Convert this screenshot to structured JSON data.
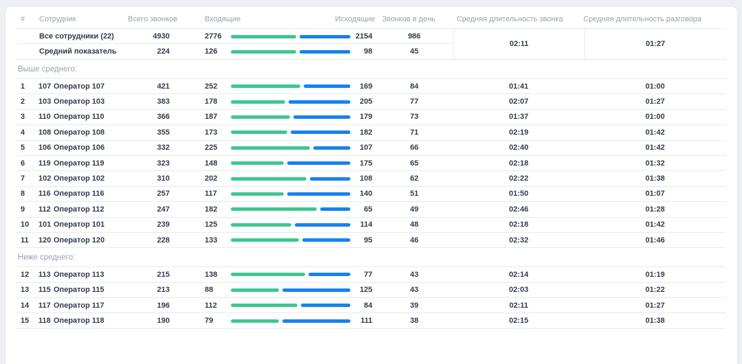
{
  "colors": {
    "incoming_bar": "#3ec78f",
    "outgoing_bar": "#1682f0"
  },
  "table": {
    "columns": {
      "rank": "#",
      "employee": "Сотрудник",
      "total": "Всего звонков",
      "incoming": "Входящие",
      "outgoing": "Исходящие",
      "per_day": "Звонков в день",
      "avg_call": "Средняя длительность звонка",
      "avg_talk": "Средняя длительность разговора"
    },
    "summary": [
      {
        "label": "Все сотрудники (22)",
        "total": 4930,
        "incoming": 2776,
        "outgoing": 2154,
        "per_day": 986
      },
      {
        "label": "Средний показатель",
        "total": 224,
        "incoming": 126,
        "outgoing": 98,
        "per_day": 45
      }
    ],
    "summary_avg_call": "02:11",
    "summary_avg_talk": "01:27",
    "sections": [
      {
        "label": "Выше среднего:",
        "rows": [
          {
            "rank": 1,
            "id": "107",
            "name": "Оператор 107",
            "total": 421,
            "incoming": 252,
            "outgoing": 169,
            "per_day": 84,
            "avg_call": "01:41",
            "avg_talk": "01:00"
          },
          {
            "rank": 2,
            "id": "103",
            "name": "Оператор 103",
            "total": 383,
            "incoming": 178,
            "outgoing": 205,
            "per_day": 77,
            "avg_call": "02:07",
            "avg_talk": "01:27"
          },
          {
            "rank": 3,
            "id": "110",
            "name": "Оператор 110",
            "total": 366,
            "incoming": 187,
            "outgoing": 179,
            "per_day": 73,
            "avg_call": "01:37",
            "avg_talk": "01:00"
          },
          {
            "rank": 4,
            "id": "108",
            "name": "Оператор 108",
            "total": 355,
            "incoming": 173,
            "outgoing": 182,
            "per_day": 71,
            "avg_call": "02:19",
            "avg_talk": "01:42"
          },
          {
            "rank": 5,
            "id": "106",
            "name": "Оператор 106",
            "total": 332,
            "incoming": 225,
            "outgoing": 107,
            "per_day": 66,
            "avg_call": "02:40",
            "avg_talk": "01:42"
          },
          {
            "rank": 6,
            "id": "119",
            "name": "Оператор 119",
            "total": 323,
            "incoming": 148,
            "outgoing": 175,
            "per_day": 65,
            "avg_call": "02:18",
            "avg_talk": "01:32"
          },
          {
            "rank": 7,
            "id": "102",
            "name": "Оператор 102",
            "total": 310,
            "incoming": 202,
            "outgoing": 108,
            "per_day": 62,
            "avg_call": "02:22",
            "avg_talk": "01:38"
          },
          {
            "rank": 8,
            "id": "116",
            "name": "Оператор 116",
            "total": 257,
            "incoming": 117,
            "outgoing": 140,
            "per_day": 51,
            "avg_call": "01:50",
            "avg_talk": "01:07"
          },
          {
            "rank": 9,
            "id": "112",
            "name": "Оператор 112",
            "total": 247,
            "incoming": 182,
            "outgoing": 65,
            "per_day": 49,
            "avg_call": "02:46",
            "avg_talk": "01:28"
          },
          {
            "rank": 10,
            "id": "101",
            "name": "Оператор 101",
            "total": 239,
            "incoming": 125,
            "outgoing": 114,
            "per_day": 48,
            "avg_call": "02:18",
            "avg_talk": "01:42"
          },
          {
            "rank": 11,
            "id": "120",
            "name": "Оператор 120",
            "total": 228,
            "incoming": 133,
            "outgoing": 95,
            "per_day": 46,
            "avg_call": "02:32",
            "avg_talk": "01:46"
          }
        ]
      },
      {
        "label": "Ниже среднего:",
        "rows": [
          {
            "rank": 12,
            "id": "113",
            "name": "Оператор 113",
            "total": 215,
            "incoming": 138,
            "outgoing": 77,
            "per_day": 43,
            "avg_call": "02:14",
            "avg_talk": "01:19"
          },
          {
            "rank": 13,
            "id": "115",
            "name": "Оператор 115",
            "total": 213,
            "incoming": 88,
            "outgoing": 125,
            "per_day": 43,
            "avg_call": "02:03",
            "avg_talk": "01:22"
          },
          {
            "rank": 14,
            "id": "117",
            "name": "Оператор 117",
            "total": 196,
            "incoming": 112,
            "outgoing": 84,
            "per_day": 39,
            "avg_call": "02:11",
            "avg_talk": "01:27"
          },
          {
            "rank": 15,
            "id": "118",
            "name": "Оператор 118",
            "total": 190,
            "incoming": 79,
            "outgoing": 111,
            "per_day": 38,
            "avg_call": "02:15",
            "avg_talk": "01:38"
          }
        ]
      }
    ]
  }
}
